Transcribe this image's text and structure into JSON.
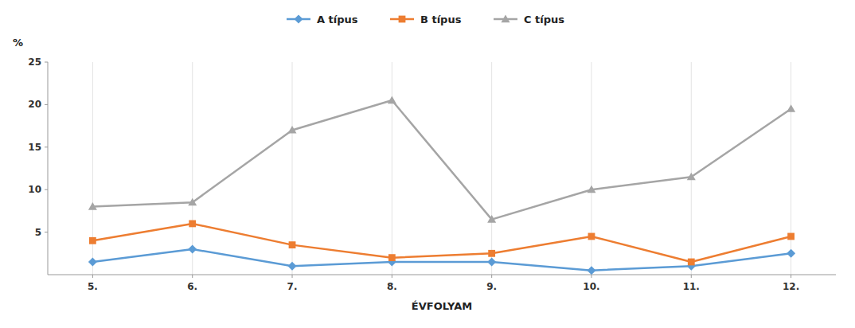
{
  "chart_data": {
    "type": "line",
    "x_label": "ÉVFOLYAM",
    "y_label": "%",
    "categories": [
      "5.",
      "6.",
      "7.",
      "8.",
      "9.",
      "10.",
      "11.",
      "12."
    ],
    "series": [
      {
        "name": "A típus",
        "color": "#5B9BD5",
        "marker": "diamond",
        "values": [
          1.5,
          3.0,
          1.0,
          1.5,
          1.5,
          0.5,
          1.0,
          2.5
        ]
      },
      {
        "name": "B típus",
        "color": "#ED7D31",
        "marker": "square",
        "values": [
          4.0,
          6.0,
          3.5,
          2.0,
          2.5,
          4.5,
          1.5,
          4.5
        ]
      },
      {
        "name": "C típus",
        "color": "#A5A5A5",
        "marker": "triangle",
        "values": [
          8.0,
          8.5,
          17.0,
          20.5,
          6.5,
          10.0,
          11.5,
          19.5
        ]
      }
    ],
    "ylim": [
      0,
      25
    ],
    "yticks": [
      5,
      10,
      15,
      20,
      25
    ],
    "grid": "x",
    "legend": "top"
  }
}
